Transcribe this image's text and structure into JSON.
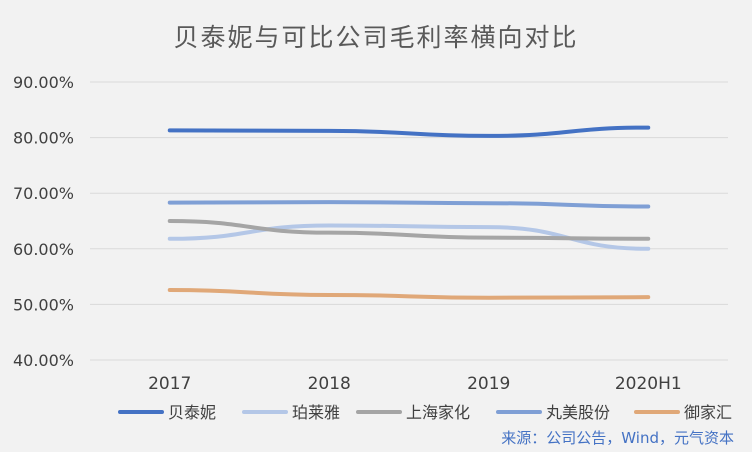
{
  "chart_data": {
    "type": "line",
    "title": "贝泰妮与可比公司毛利率横向对比",
    "categories": [
      "2017",
      "2018",
      "2019",
      "2020H1"
    ],
    "yticks": [
      "40.00%",
      "50.00%",
      "60.00%",
      "70.00%",
      "80.00%",
      "90.00%"
    ],
    "ylim": [
      40,
      90
    ],
    "grid": true,
    "legend_position": "bottom",
    "series": [
      {
        "name": "贝泰妮",
        "color": "#4472c4",
        "values": [
          81.3,
          81.2,
          80.3,
          81.8
        ]
      },
      {
        "name": "珀莱雅",
        "color": "#b4c7e7",
        "values": [
          61.8,
          64.2,
          63.9,
          60.0
        ]
      },
      {
        "name": "上海家化",
        "color": "#a5a5a5",
        "values": [
          65.0,
          62.9,
          62.0,
          61.8
        ]
      },
      {
        "name": "丸美股份",
        "color": "#7f9fd5",
        "values": [
          68.3,
          68.4,
          68.2,
          67.6
        ]
      },
      {
        "name": "御家汇",
        "color": "#e0a878",
        "values": [
          52.6,
          51.7,
          51.2,
          51.3
        ]
      }
    ],
    "source": "来源：公司公告，Wind，元气资本"
  }
}
